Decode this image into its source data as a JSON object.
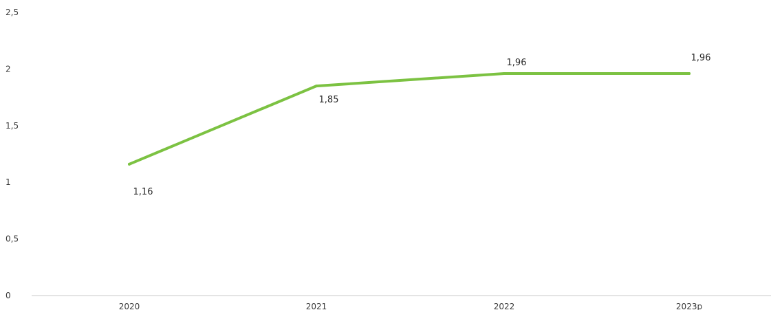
{
  "chart_data": {
    "type": "line",
    "categories": [
      "2020",
      "2021",
      "2022",
      "2023p"
    ],
    "series": [
      {
        "values": [
          1.16,
          1.85,
          1.96,
          1.96
        ]
      }
    ],
    "data_labels": [
      "1,16",
      "1,85",
      "1,96",
      "1,96"
    ],
    "y_ticks": [
      "0",
      "0,5",
      "1",
      "1,5",
      "2",
      "2,5"
    ],
    "y_tick_values": [
      0,
      0.5,
      1,
      1.5,
      2,
      2.5
    ],
    "ylim": [
      0,
      2.5
    ],
    "grid": false,
    "legend": "none",
    "line_color": "#7cc242",
    "axis_color": "#c8c8c8"
  }
}
